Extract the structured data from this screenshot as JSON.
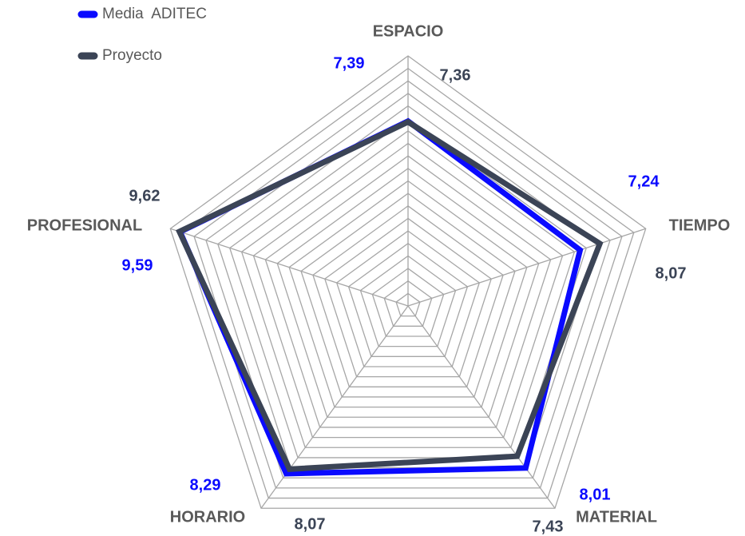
{
  "chart_data": {
    "type": "radar",
    "categories": [
      "ESPACIO",
      "TIEMPO",
      "MATERIAL",
      "HORARIO",
      "PROFESIONAL"
    ],
    "series": [
      {
        "name": "Media  ADITEC",
        "color": "#0a0aff",
        "values": [
          7.39,
          7.24,
          8.01,
          8.29,
          9.59
        ],
        "value_labels": [
          "7,39",
          "7,24",
          "8,01",
          "8,29",
          "9,59"
        ]
      },
      {
        "name": "Proyecto",
        "color": "#3b4456",
        "values": [
          7.36,
          8.07,
          7.43,
          8.07,
          9.62
        ],
        "value_labels": [
          "7,36",
          "8,07",
          "7,43",
          "8,07",
          "9,62"
        ]
      }
    ],
    "ylim": [
      0,
      10
    ],
    "yticks": [
      0,
      0.5,
      1,
      1.5,
      2,
      2.5,
      3,
      3.5,
      4,
      4.5,
      5,
      5.5,
      6,
      6.5,
      7,
      7.5,
      8,
      8.5,
      9,
      9.5,
      10
    ],
    "grid": true,
    "legend": "top-left"
  }
}
